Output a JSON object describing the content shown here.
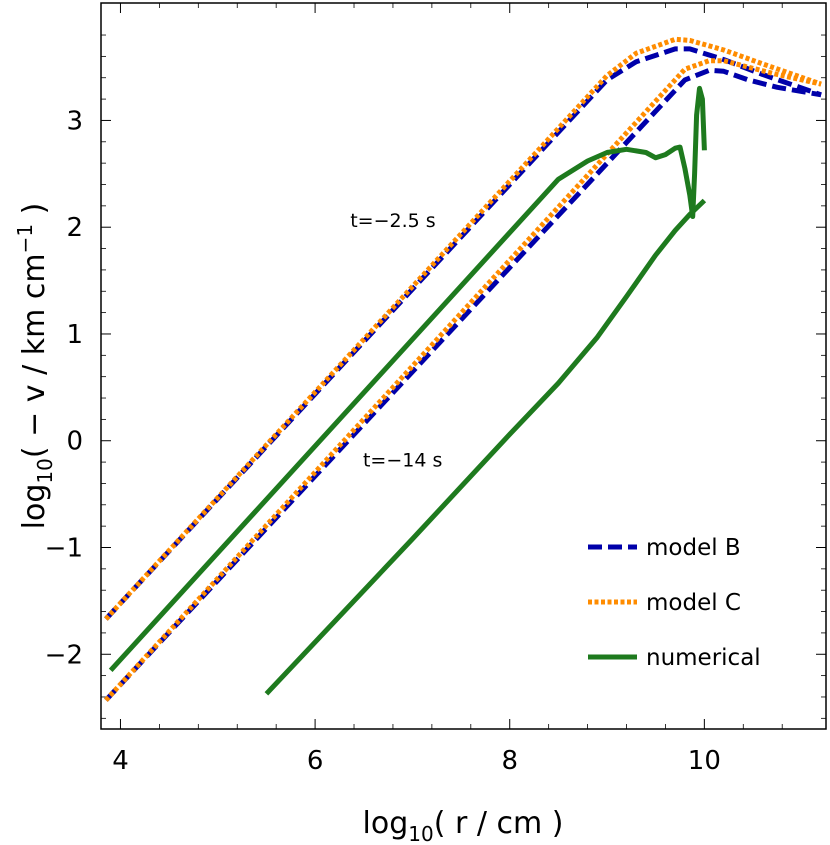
{
  "chart_data": {
    "type": "line",
    "xlabel": {
      "main": "log",
      "sub": "10",
      "rest": "( r / cm )"
    },
    "ylabel": {
      "main": "log",
      "sub": "10",
      "mid": "( − v / km cm",
      "sup": "−1",
      "end": " )"
    },
    "xlim": [
      3.8,
      11.25
    ],
    "ylim": [
      -2.7,
      4.1
    ],
    "xticks": [
      4,
      6,
      8,
      10
    ],
    "xtick_labels": [
      "4",
      "6",
      "8",
      "10"
    ],
    "yticks": [
      -2,
      -1,
      0,
      1,
      2,
      3
    ],
    "ytick_labels": [
      "−2",
      "−1",
      "0",
      "1",
      "2",
      "3"
    ],
    "grid": false,
    "legend_position": "bottom-right",
    "legend": [
      "model B",
      "model C",
      "numerical"
    ],
    "annotations": [
      {
        "text": "t=−2.5 s",
        "x": 6.8,
        "y": 2.0
      },
      {
        "text": "t=−14 s",
        "x": 6.9,
        "y": -0.24
      }
    ],
    "series": [
      {
        "name": "model B",
        "style": "dashed",
        "color": "#0000aa",
        "group": "t=-2.5 s",
        "x": [
          3.85,
          9.0,
          9.3,
          9.7,
          9.85,
          10.2,
          10.6,
          11.2
        ],
        "y": [
          -1.67,
          3.38,
          3.55,
          3.67,
          3.67,
          3.57,
          3.43,
          3.24
        ]
      },
      {
        "name": "model C",
        "style": "dotted",
        "color": "#ff8c00",
        "group": "t=-2.5 s",
        "x": [
          3.85,
          9.0,
          9.3,
          9.7,
          9.85,
          10.2,
          10.6,
          11.2
        ],
        "y": [
          -1.67,
          3.42,
          3.63,
          3.76,
          3.75,
          3.66,
          3.53,
          3.34
        ]
      },
      {
        "name": "model B",
        "style": "dashed",
        "color": "#0000aa",
        "group": "t=-14 s",
        "x": [
          3.85,
          9.8,
          10.05,
          10.2,
          10.45,
          10.75,
          11.2
        ],
        "y": [
          -2.43,
          3.38,
          3.47,
          3.46,
          3.38,
          3.31,
          3.24
        ]
      },
      {
        "name": "model C",
        "style": "dotted",
        "color": "#ff8c00",
        "group": "t=-14 s",
        "x": [
          3.85,
          9.8,
          10.05,
          10.2,
          10.45,
          10.75,
          11.2
        ],
        "y": [
          -2.43,
          3.48,
          3.56,
          3.56,
          3.5,
          3.43,
          3.34
        ]
      },
      {
        "name": "numerical",
        "style": "solid",
        "color": "#1e7a1e",
        "group": "t=-2.5 s",
        "x": [
          3.9,
          8.5,
          8.8,
          9.0,
          9.2,
          9.4,
          9.5,
          9.6,
          9.7,
          9.75,
          9.8,
          9.85,
          9.88,
          9.9,
          9.92,
          9.95,
          9.98,
          10.0
        ],
        "y": [
          -2.15,
          2.45,
          2.62,
          2.7,
          2.73,
          2.7,
          2.65,
          2.68,
          2.74,
          2.75,
          2.55,
          2.3,
          2.1,
          2.5,
          3.05,
          3.3,
          3.2,
          2.72
        ]
      },
      {
        "name": "numerical",
        "style": "solid",
        "color": "#1e7a1e",
        "group": "t=-14 s",
        "x": [
          5.5,
          7.0,
          8.0,
          8.5,
          8.9,
          9.2,
          9.5,
          9.7,
          9.85,
          10.0
        ],
        "y": [
          -2.37,
          -0.92,
          0.06,
          0.54,
          0.97,
          1.35,
          1.74,
          1.97,
          2.12,
          2.25
        ]
      }
    ]
  }
}
